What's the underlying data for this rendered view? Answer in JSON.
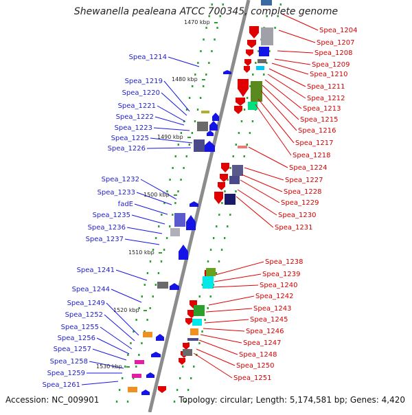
{
  "title": "Shewanella pealeana ATCC 700345, complete genome",
  "accession": "Accession: NC_009901",
  "summary": "Topology: circular; Length: 5,174,581 bp; Genes: 4,420",
  "colors": {
    "backbone": "#8c8c8c",
    "tick": "#2ca02c",
    "forward": "#e00000",
    "reverse": "#1414e6",
    "label_left": "#1f1fc8",
    "label_right": "#d40000"
  },
  "scale_labels": [
    "1470 kbp",
    "1480 kbp",
    "1490 kbp",
    "1500 kbp",
    "1510 kbp",
    "1520 kbp",
    "1530 kbp"
  ],
  "left_genes": [
    "Spea_1214",
    "Spea_1219",
    "Spea_1220",
    "Spea_1221",
    "Spea_1222",
    "Spea_1223",
    "Spea_1225",
    "Spea_1226",
    "Spea_1232",
    "Spea_1233",
    "fadE",
    "Spea_1235",
    "Spea_1236",
    "Spea_1237",
    "Spea_1241",
    "Spea_1244",
    "Spea_1249",
    "Spea_1252",
    "Spea_1255",
    "Spea_1256",
    "Spea_1257",
    "Spea_1258",
    "Spea_1259",
    "Spea_1261"
  ],
  "right_genes": [
    "Spea_1204",
    "Spea_1207",
    "Spea_1208",
    "Spea_1209",
    "Spea_1210",
    "Spea_1211",
    "Spea_1212",
    "Spea_1213",
    "Spea_1215",
    "Spea_1216",
    "Spea_1217",
    "Spea_1218",
    "Spea_1224",
    "Spea_1227",
    "Spea_1228",
    "Spea_1229",
    "Spea_1230",
    "Spea_1231",
    "Spea_1238",
    "Spea_1239",
    "Spea_1240",
    "Spea_1242",
    "Spea_1243",
    "Spea_1245",
    "Spea_1246",
    "Spea_1247",
    "Spea_1248",
    "Spea_1250",
    "Spea_1251"
  ]
}
